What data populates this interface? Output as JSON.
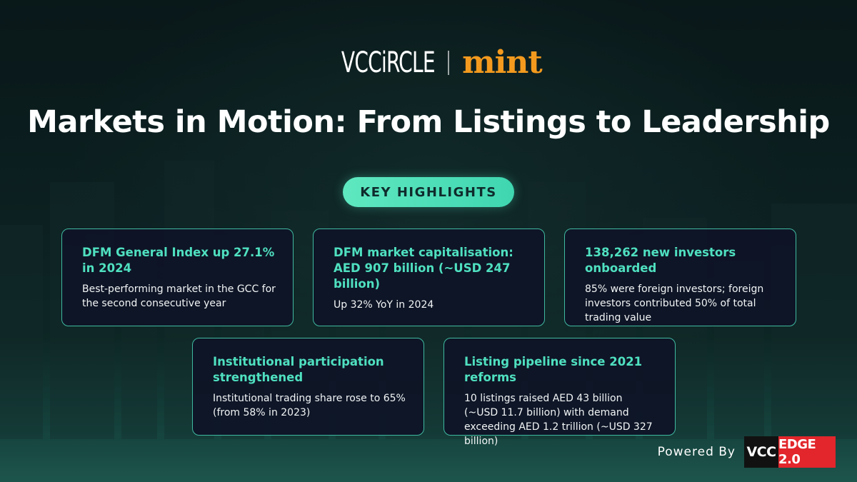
{
  "brands": {
    "left_logo": "VCCiRCLE",
    "right_logo": "mint"
  },
  "title": "Markets in Motion: From Listings to Leadership",
  "section_label": "KEY HIGHLIGHTS",
  "cards": [
    {
      "title": "DFM General Index up 27.1% in 2024",
      "body": "Best-performing market in the GCC for the second consecutive year"
    },
    {
      "title": "DFM market capitalisation: AED 907 billion (~USD 247 billion)",
      "body": "Up 32% YoY in 2024"
    },
    {
      "title": "138,262 new investors onboarded",
      "body": "85% were foreign investors; foreign investors contributed 50% of total trading value"
    },
    {
      "title": "Institutional participation strengthened",
      "body": "Institutional trading share rose to 65% (from 58% in 2023)"
    },
    {
      "title": "Listing pipeline since 2021 reforms",
      "body": "10 listings raised AED 43 billion (~USD 11.7 billion) with demand exceeding AED 1.2 trillion (~USD 327 billion)"
    }
  ],
  "footer": {
    "powered_by": "Powered By",
    "badge_left": "VCC",
    "badge_right": "EDGE 2.0"
  },
  "colors": {
    "accent": "#4fe0c0",
    "mint_orange": "#f39a1e",
    "edge_red": "#e2262b",
    "card_bg": "#0e1426"
  }
}
